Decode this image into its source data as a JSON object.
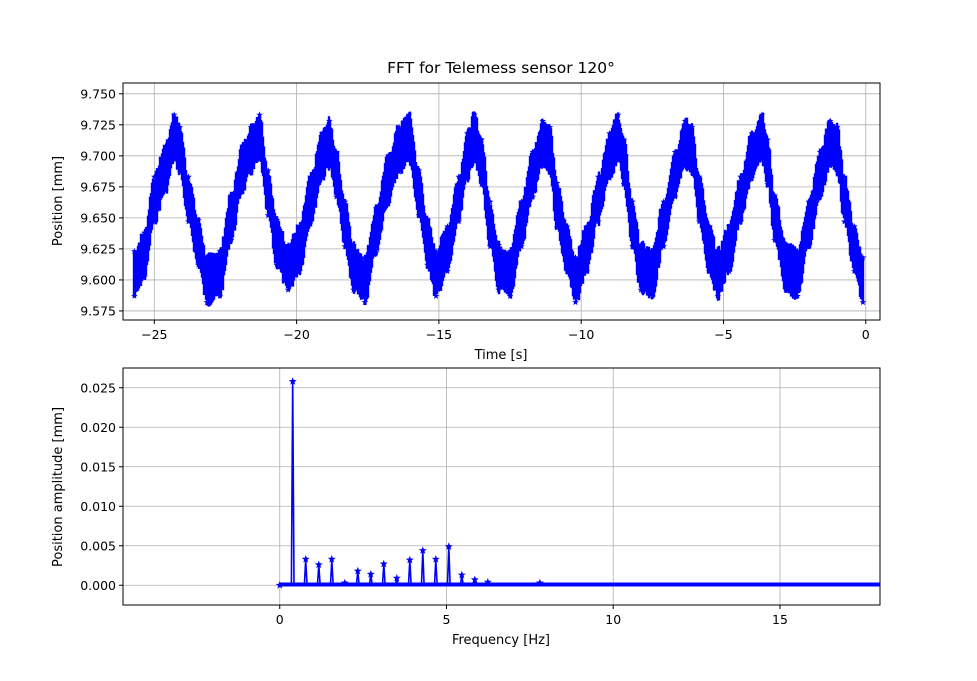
{
  "figure": {
    "title": "FFT for Telemess sensor 120°"
  },
  "chart_data": [
    {
      "type": "line",
      "title": "FFT for Telemess sensor 120°",
      "xlabel": "Time [s]",
      "ylabel": "Position [mm]",
      "xlim": [
        -26.1,
        0.5
      ],
      "ylim": [
        9.5677,
        9.7587
      ],
      "xticks": [
        -25,
        -20,
        -15,
        -10,
        -5,
        0
      ],
      "xtick_labels": [
        "−25",
        "−20",
        "−15",
        "−10",
        "−5",
        "0"
      ],
      "yticks": [
        9.575,
        9.6,
        9.625,
        9.65,
        9.675,
        9.7,
        9.725,
        9.75
      ],
      "ytick_labels": [
        "9.575",
        "9.600",
        "9.625",
        "9.650",
        "9.675",
        "9.700",
        "9.725",
        "9.750"
      ],
      "grid": true,
      "marker": "star",
      "color": "#0000ff",
      "series": [
        {
          "x": [
            -25.7,
            -25.35,
            -25.0,
            -24.6,
            -24.3,
            -24.1,
            -23.8,
            -23.45,
            -23.15,
            -22.7,
            -22.3,
            -21.9,
            -21.6,
            -21.3,
            -21.0,
            -20.7,
            -20.3,
            -19.9,
            -19.5,
            -19.1,
            -18.85,
            -18.6,
            -18.3,
            -18.0,
            -17.6,
            -17.2,
            -16.8,
            -16.4,
            -16.05,
            -15.7,
            -15.4,
            -15.1,
            -14.7,
            -14.3,
            -14.0,
            -13.75,
            -13.5,
            -13.2,
            -12.9,
            -12.5,
            -12.1,
            -11.7,
            -11.35,
            -11.1,
            -10.85,
            -10.5,
            -10.2,
            -9.8,
            -9.4,
            -9.0,
            -8.7,
            -8.5,
            -8.2,
            -7.9,
            -7.5,
            -7.1,
            -6.7,
            -6.35,
            -6.1,
            -5.85,
            -5.5,
            -5.2,
            -4.8,
            -4.4,
            -4.0,
            -3.65,
            -3.45,
            -3.2,
            -2.8,
            -2.4,
            -2.0,
            -1.6,
            -1.25,
            -1.0,
            -0.75,
            -0.4,
            -0.1
          ],
          "y": [
            9.605,
            9.62,
            9.665,
            9.69,
            9.715,
            9.705,
            9.665,
            9.63,
            9.6,
            9.605,
            9.65,
            9.69,
            9.705,
            9.715,
            9.67,
            9.63,
            9.61,
            9.625,
            9.665,
            9.7,
            9.71,
            9.685,
            9.645,
            9.61,
            9.6,
            9.64,
            9.68,
            9.705,
            9.715,
            9.67,
            9.63,
            9.605,
            9.625,
            9.665,
            9.7,
            9.715,
            9.695,
            9.645,
            9.61,
            9.605,
            9.645,
            9.685,
            9.71,
            9.705,
            9.66,
            9.625,
            9.6,
            9.625,
            9.665,
            9.7,
            9.715,
            9.695,
            9.645,
            9.61,
            9.605,
            9.645,
            9.685,
            9.71,
            9.705,
            9.665,
            9.625,
            9.605,
            9.625,
            9.665,
            9.7,
            9.715,
            9.695,
            9.65,
            9.61,
            9.605,
            9.645,
            9.685,
            9.71,
            9.705,
            9.665,
            9.625,
            9.6
          ],
          "spread_mm": 0.02
        }
      ]
    },
    {
      "type": "line",
      "xlabel": "Frequency [Hz]",
      "ylabel": "Position amplitude [mm]",
      "xlim": [
        -4.7,
        18.0
      ],
      "ylim": [
        -0.0025,
        0.0275
      ],
      "xticks": [
        0,
        5,
        10,
        15
      ],
      "xtick_labels": [
        "0",
        "5",
        "10",
        "15"
      ],
      "yticks": [
        0.0,
        0.005,
        0.01,
        0.015,
        0.02,
        0.025
      ],
      "ytick_labels": [
        "0.000",
        "0.005",
        "0.010",
        "0.015",
        "0.020",
        "0.025"
      ],
      "grid": true,
      "marker": "star",
      "color": "#0000ff",
      "series": [
        {
          "peaks_x": [
            0.0,
            0.39,
            0.78,
            1.17,
            1.56,
            1.95,
            2.34,
            2.73,
            3.12,
            3.51,
            3.9,
            4.29,
            4.68,
            5.07,
            5.46,
            5.85,
            6.24,
            7.8
          ],
          "peaks_y": [
            0.0,
            0.0258,
            0.0033,
            0.0026,
            0.0033,
            0.0003,
            0.0018,
            0.0014,
            0.0027,
            0.0009,
            0.0032,
            0.0044,
            0.0033,
            0.0049,
            0.0013,
            0.0007,
            0.0004,
            0.0003
          ],
          "floor_y": 0.0001,
          "x_start": 0.0,
          "x_end": 18.0,
          "step": 0.039
        }
      ]
    }
  ]
}
